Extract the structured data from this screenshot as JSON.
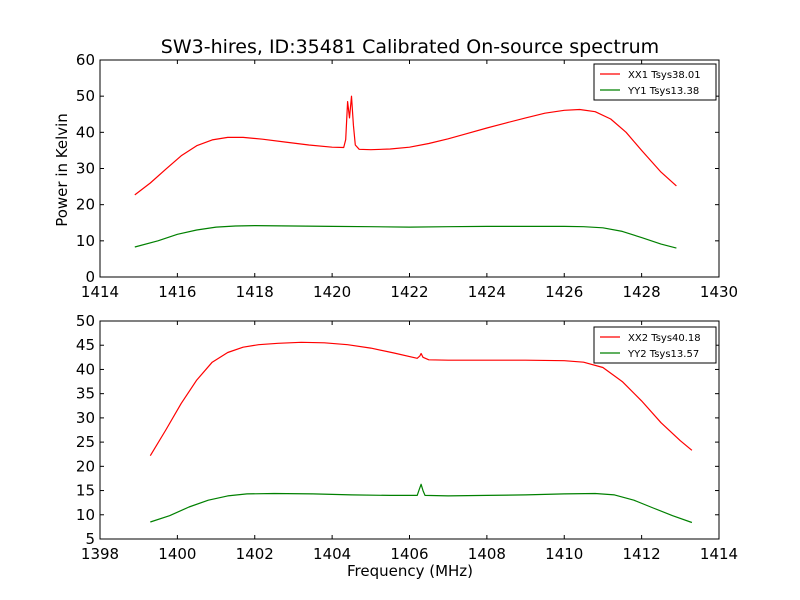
{
  "figure": {
    "title": "SW3-hires, ID:35481 Calibrated On-source spectrum",
    "ylabel": "Power in Kelvin",
    "xlabel": "Frequency (MHz)"
  },
  "chart_data": [
    {
      "type": "line",
      "title": "SW3-hires, ID:35481 Calibrated On-source spectrum",
      "xlabel": "",
      "ylabel": "Power in Kelvin",
      "xlim": [
        1414,
        1430
      ],
      "ylim": [
        0,
        60
      ],
      "xticks": [
        "1414",
        "1416",
        "1418",
        "1420",
        "1422",
        "1424",
        "1426",
        "1428",
        "1430"
      ],
      "yticks": [
        "0",
        "10",
        "20",
        "30",
        "40",
        "50",
        "60"
      ],
      "legend_position": "top-right",
      "grid": false,
      "series": [
        {
          "name": "XX1 Tsys38.01",
          "color": "#ff0000",
          "x": [
            1414.9,
            1415.3,
            1415.7,
            1416.1,
            1416.5,
            1416.9,
            1417.3,
            1417.7,
            1418.2,
            1418.8,
            1419.4,
            1420.0,
            1420.3,
            1420.35,
            1420.4,
            1420.45,
            1420.5,
            1420.55,
            1420.6,
            1420.7,
            1421.0,
            1421.5,
            1422.0,
            1422.5,
            1423.0,
            1423.5,
            1424.0,
            1424.5,
            1425.0,
            1425.5,
            1426.0,
            1426.4,
            1426.8,
            1427.2,
            1427.6,
            1428.0,
            1428.5,
            1428.9
          ],
          "y": [
            22.7,
            26.0,
            29.8,
            33.5,
            36.3,
            37.9,
            38.6,
            38.6,
            38.1,
            37.3,
            36.5,
            35.9,
            35.8,
            38.0,
            48.5,
            44.0,
            50.0,
            42.0,
            36.5,
            35.3,
            35.2,
            35.4,
            35.9,
            36.9,
            38.2,
            39.7,
            41.2,
            42.6,
            44.0,
            45.3,
            46.1,
            46.3,
            45.7,
            43.7,
            40.0,
            35.0,
            29.0,
            25.2
          ]
        },
        {
          "name": "YY1 Tsys13.38",
          "color": "#008000",
          "x": [
            1414.9,
            1415.5,
            1416.0,
            1416.5,
            1417.0,
            1417.5,
            1418.0,
            1419.0,
            1420.0,
            1421.0,
            1422.0,
            1423.0,
            1424.0,
            1425.0,
            1426.0,
            1426.5,
            1427.0,
            1427.5,
            1428.0,
            1428.5,
            1428.9
          ],
          "y": [
            8.3,
            10.0,
            11.8,
            13.0,
            13.8,
            14.1,
            14.2,
            14.1,
            14.0,
            13.9,
            13.8,
            13.9,
            14.0,
            14.0,
            14.0,
            13.9,
            13.6,
            12.6,
            10.9,
            9.1,
            8.0
          ]
        }
      ]
    },
    {
      "type": "line",
      "title": "",
      "xlabel": "Frequency (MHz)",
      "ylabel": "",
      "xlim": [
        1398,
        1414
      ],
      "ylim": [
        5,
        50
      ],
      "xticks": [
        "1398",
        "1400",
        "1402",
        "1404",
        "1406",
        "1408",
        "1410",
        "1412",
        "1414"
      ],
      "yticks": [
        "5",
        "10",
        "15",
        "20",
        "25",
        "30",
        "35",
        "40",
        "45",
        "50"
      ],
      "legend_position": "top-right",
      "grid": false,
      "series": [
        {
          "name": "XX2 Tsys40.18",
          "color": "#ff0000",
          "x": [
            1399.3,
            1399.7,
            1400.1,
            1400.5,
            1400.9,
            1401.3,
            1401.7,
            1402.1,
            1402.6,
            1403.2,
            1403.8,
            1404.4,
            1405.0,
            1405.6,
            1406.2,
            1406.27,
            1406.3,
            1406.35,
            1406.5,
            1407.0,
            1408.0,
            1409.0,
            1410.0,
            1410.5,
            1411.0,
            1411.5,
            1412.0,
            1412.5,
            1413.0,
            1413.3
          ],
          "y": [
            22.2,
            27.5,
            33.0,
            37.8,
            41.5,
            43.5,
            44.6,
            45.1,
            45.4,
            45.6,
            45.5,
            45.1,
            44.4,
            43.4,
            42.3,
            42.8,
            43.3,
            42.5,
            42.0,
            41.9,
            41.9,
            41.9,
            41.8,
            41.5,
            40.4,
            37.5,
            33.5,
            29.0,
            25.3,
            23.3
          ]
        },
        {
          "name": "YY2 Tsys13.57",
          "color": "#008000",
          "x": [
            1399.3,
            1399.8,
            1400.3,
            1400.8,
            1401.3,
            1401.8,
            1402.5,
            1403.5,
            1404.5,
            1405.5,
            1406.2,
            1406.25,
            1406.3,
            1406.35,
            1406.4,
            1407.0,
            1408.0,
            1409.0,
            1410.0,
            1410.8,
            1411.3,
            1411.8,
            1412.3,
            1412.8,
            1413.3
          ],
          "y": [
            8.5,
            9.8,
            11.6,
            13.0,
            13.9,
            14.3,
            14.4,
            14.3,
            14.1,
            14.0,
            14.0,
            15.2,
            16.3,
            15.0,
            14.0,
            13.9,
            14.0,
            14.1,
            14.3,
            14.4,
            14.1,
            13.0,
            11.4,
            9.8,
            8.4
          ]
        }
      ]
    }
  ]
}
